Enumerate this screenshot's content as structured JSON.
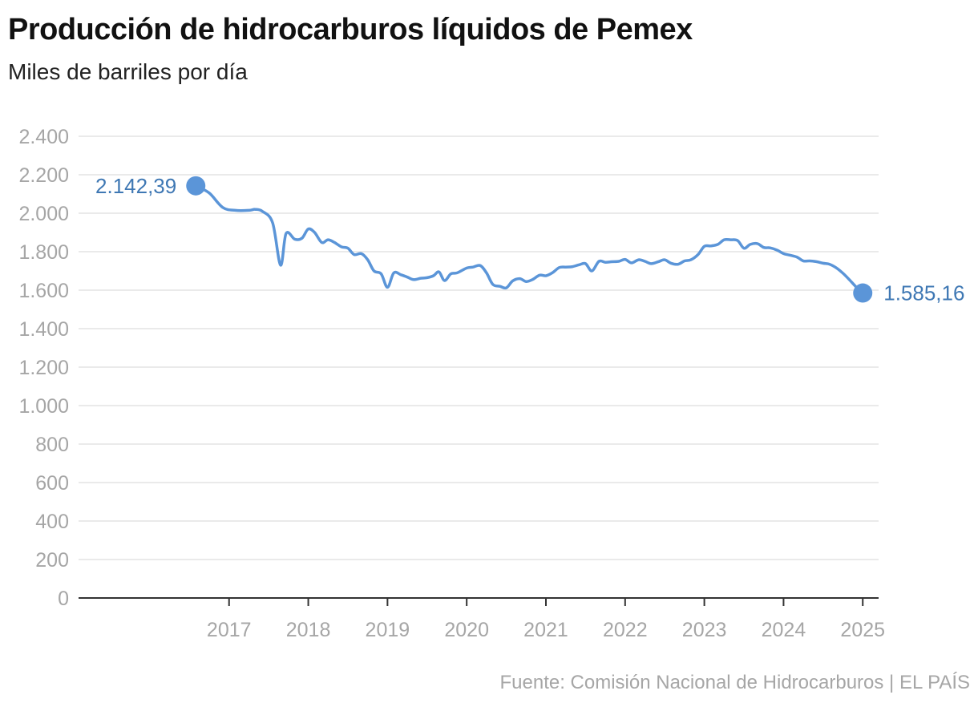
{
  "chart_data": {
    "type": "line",
    "title": "Producción de hidrocarburos líquidos de Pemex",
    "subtitle": "Miles de barriles por día",
    "source": "Fuente: Comisión Nacional de Hidrocarburos | EL PAÍS",
    "xlabel": "",
    "ylabel": "",
    "ylim": [
      0,
      2400
    ],
    "xlim": [
      2015.1,
      2025.2
    ],
    "yticks": [
      0,
      200,
      400,
      600,
      800,
      1000,
      1200,
      1400,
      1600,
      1800,
      2000,
      2200,
      2400
    ],
    "ytick_labels": [
      "0",
      "200",
      "400",
      "600",
      "800",
      "1.000",
      "1.200",
      "1.400",
      "1.600",
      "1.800",
      "2.000",
      "2.200",
      "2.400"
    ],
    "xticks": [
      2017,
      2018,
      2019,
      2020,
      2021,
      2022,
      2023,
      2024,
      2025
    ],
    "xtick_labels": [
      "2017",
      "2018",
      "2019",
      "2020",
      "2021",
      "2022",
      "2023",
      "2024",
      "2025"
    ],
    "grid": true,
    "line_color": "#5b95d8",
    "label_color": "#3f78b4",
    "start_label": "2.142,39",
    "end_label": "1.585,16",
    "series": [
      {
        "values": [
          [
            2016.58,
            2142.39
          ],
          [
            2016.75,
            2105
          ],
          [
            2016.92,
            2030
          ],
          [
            2017.08,
            2015
          ],
          [
            2017.25,
            2015
          ],
          [
            2017.33,
            2020
          ],
          [
            2017.42,
            2010
          ],
          [
            2017.55,
            1950
          ],
          [
            2017.65,
            1730
          ],
          [
            2017.72,
            1895
          ],
          [
            2017.83,
            1865
          ],
          [
            2017.92,
            1870
          ],
          [
            2018.0,
            1918
          ],
          [
            2018.08,
            1900
          ],
          [
            2018.17,
            1848
          ],
          [
            2018.25,
            1862
          ],
          [
            2018.33,
            1848
          ],
          [
            2018.42,
            1825
          ],
          [
            2018.5,
            1818
          ],
          [
            2018.58,
            1785
          ],
          [
            2018.67,
            1790
          ],
          [
            2018.75,
            1758
          ],
          [
            2018.83,
            1700
          ],
          [
            2018.92,
            1685
          ],
          [
            2019.0,
            1615
          ],
          [
            2019.08,
            1690
          ],
          [
            2019.17,
            1680
          ],
          [
            2019.25,
            1668
          ],
          [
            2019.33,
            1655
          ],
          [
            2019.42,
            1662
          ],
          [
            2019.5,
            1665
          ],
          [
            2019.58,
            1675
          ],
          [
            2019.65,
            1695
          ],
          [
            2019.72,
            1650
          ],
          [
            2019.8,
            1685
          ],
          [
            2019.88,
            1690
          ],
          [
            2020.0,
            1715
          ],
          [
            2020.08,
            1720
          ],
          [
            2020.17,
            1728
          ],
          [
            2020.25,
            1690
          ],
          [
            2020.33,
            1630
          ],
          [
            2020.42,
            1620
          ],
          [
            2020.5,
            1612
          ],
          [
            2020.58,
            1648
          ],
          [
            2020.67,
            1660
          ],
          [
            2020.75,
            1645
          ],
          [
            2020.83,
            1655
          ],
          [
            2020.92,
            1678
          ],
          [
            2021.0,
            1675
          ],
          [
            2021.08,
            1690
          ],
          [
            2021.17,
            1718
          ],
          [
            2021.25,
            1720
          ],
          [
            2021.33,
            1722
          ],
          [
            2021.42,
            1732
          ],
          [
            2021.5,
            1738
          ],
          [
            2021.58,
            1700
          ],
          [
            2021.67,
            1750
          ],
          [
            2021.75,
            1745
          ],
          [
            2021.83,
            1748
          ],
          [
            2021.92,
            1750
          ],
          [
            2022.0,
            1760
          ],
          [
            2022.08,
            1742
          ],
          [
            2022.17,
            1758
          ],
          [
            2022.25,
            1750
          ],
          [
            2022.33,
            1738
          ],
          [
            2022.42,
            1748
          ],
          [
            2022.5,
            1758
          ],
          [
            2022.58,
            1740
          ],
          [
            2022.67,
            1735
          ],
          [
            2022.75,
            1752
          ],
          [
            2022.83,
            1758
          ],
          [
            2022.92,
            1785
          ],
          [
            2023.0,
            1828
          ],
          [
            2023.08,
            1830
          ],
          [
            2023.17,
            1838
          ],
          [
            2023.25,
            1862
          ],
          [
            2023.33,
            1862
          ],
          [
            2023.42,
            1858
          ],
          [
            2023.5,
            1818
          ],
          [
            2023.58,
            1838
          ],
          [
            2023.67,
            1842
          ],
          [
            2023.75,
            1822
          ],
          [
            2023.83,
            1820
          ],
          [
            2023.92,
            1808
          ],
          [
            2024.0,
            1790
          ],
          [
            2024.08,
            1782
          ],
          [
            2024.17,
            1772
          ],
          [
            2024.25,
            1752
          ],
          [
            2024.33,
            1752
          ],
          [
            2024.42,
            1748
          ],
          [
            2024.5,
            1740
          ],
          [
            2024.58,
            1735
          ],
          [
            2024.67,
            1715
          ],
          [
            2024.75,
            1688
          ],
          [
            2024.83,
            1655
          ],
          [
            2024.92,
            1615
          ],
          [
            2025.0,
            1585.16
          ]
        ]
      }
    ]
  }
}
